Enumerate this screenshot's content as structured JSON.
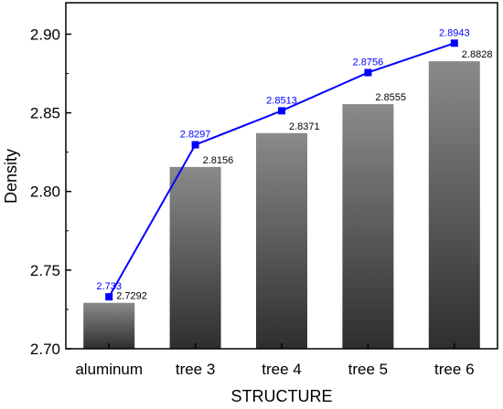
{
  "chart_data": {
    "type": "bar",
    "categories": [
      "aluminum",
      "tree 3",
      "tree 4",
      "tree 5",
      "tree 6"
    ],
    "series": [
      {
        "kind": "bar",
        "values": [
          2.7292,
          2.8156,
          2.8371,
          2.8555,
          2.8828
        ],
        "labels": [
          "2.7292",
          "2.8156",
          "2.8371",
          "2.8555",
          "2.8828"
        ]
      },
      {
        "kind": "line",
        "values": [
          2.733,
          2.8297,
          2.8513,
          2.8756,
          2.8943
        ],
        "labels": [
          "2.733",
          "2.8297",
          "2.8513",
          "2.8756",
          "2.8943"
        ]
      }
    ],
    "xlabel": "STRUCTURE",
    "ylabel": "Density",
    "ylim": [
      2.7,
      2.92
    ],
    "yticks": [
      "2.70",
      "2.75",
      "2.80",
      "2.85",
      "2.90"
    ],
    "ytick_values": [
      2.7,
      2.75,
      2.8,
      2.85,
      2.9
    ],
    "grid": false,
    "colors": {
      "line": "#0000ff",
      "bar_top": "#8a8a8a",
      "bar_bottom": "#2e2e2e",
      "axis": "#000000"
    }
  }
}
